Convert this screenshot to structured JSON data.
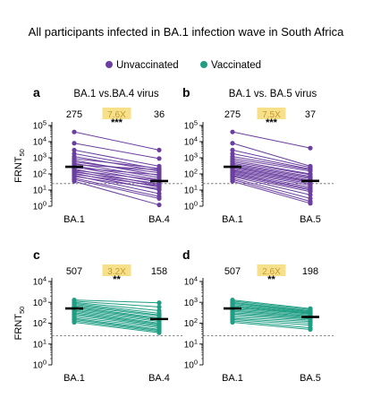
{
  "figure": {
    "title": "All participants  infected  in  BA.1 infection  wave  in  South Africa",
    "legend": [
      {
        "label": "Unvaccinated",
        "color": "#6b3fa0"
      },
      {
        "label": "Vaccinated",
        "color": "#1f9e84"
      }
    ],
    "highlight_color": "#f7e08a"
  },
  "chart_data": [
    {
      "type": "line",
      "panel": "a",
      "subtitle": "BA.1 vs.BA.4 virus",
      "group": "Unvaccinated",
      "color": "#6b3fa0",
      "ylabel": "FRNT",
      "ylabel_sub": "50",
      "scale": "log",
      "ylim": [
        1,
        100000
      ],
      "yticks": [
        1,
        10,
        100,
        1000,
        10000,
        100000
      ],
      "categories": [
        "BA.1",
        "BA.4"
      ],
      "gmt": [
        275,
        36
      ],
      "fold": "7.6X",
      "sig": "***",
      "cutoff": 25,
      "pairs": [
        [
          40000,
          3000
        ],
        [
          8000,
          900
        ],
        [
          3000,
          300
        ],
        [
          1800,
          200
        ],
        [
          1200,
          150
        ],
        [
          900,
          220
        ],
        [
          700,
          80
        ],
        [
          550,
          120
        ],
        [
          450,
          60
        ],
        [
          380,
          180
        ],
        [
          320,
          45
        ],
        [
          280,
          30
        ],
        [
          240,
          90
        ],
        [
          200,
          20
        ],
        [
          170,
          40
        ],
        [
          150,
          15
        ],
        [
          130,
          25
        ],
        [
          110,
          10
        ],
        [
          95,
          18
        ],
        [
          80,
          6
        ],
        [
          70,
          12
        ],
        [
          55,
          4
        ],
        [
          45,
          3
        ],
        [
          35,
          1.2
        ]
      ]
    },
    {
      "type": "line",
      "panel": "b",
      "subtitle": "BA.1 vs. BA.5 virus",
      "group": "Unvaccinated",
      "color": "#6b3fa0",
      "ylabel": "",
      "scale": "log",
      "ylim": [
        1,
        100000
      ],
      "yticks": [
        1,
        10,
        100,
        1000,
        10000,
        100000
      ],
      "categories": [
        "BA.1",
        "BA.5"
      ],
      "gmt": [
        275,
        37
      ],
      "fold": "7.5X",
      "sig": "***",
      "cutoff": 25,
      "pairs": [
        [
          40000,
          4000
        ],
        [
          8000,
          300
        ],
        [
          3000,
          250
        ],
        [
          1800,
          200
        ],
        [
          1200,
          180
        ],
        [
          900,
          150
        ],
        [
          700,
          100
        ],
        [
          550,
          90
        ],
        [
          450,
          70
        ],
        [
          380,
          60
        ],
        [
          320,
          50
        ],
        [
          280,
          40
        ],
        [
          240,
          35
        ],
        [
          200,
          30
        ],
        [
          170,
          25
        ],
        [
          150,
          20
        ],
        [
          130,
          15
        ],
        [
          110,
          12
        ],
        [
          95,
          10
        ],
        [
          80,
          8
        ],
        [
          70,
          5
        ],
        [
          55,
          3
        ],
        [
          45,
          2
        ],
        [
          35,
          1.5
        ]
      ]
    },
    {
      "type": "line",
      "panel": "c",
      "subtitle": "",
      "group": "Vaccinated",
      "color": "#1f9e84",
      "ylabel": "FRNT",
      "ylabel_sub": "50",
      "scale": "log",
      "ylim": [
        1,
        10000
      ],
      "yticks": [
        1,
        10,
        100,
        1000,
        10000
      ],
      "categories": [
        "BA.1",
        "BA.4"
      ],
      "gmt": [
        507,
        158
      ],
      "fold": "3.2X",
      "sig": "**",
      "cutoff": 25,
      "pairs": [
        [
          1300,
          950
        ],
        [
          1150,
          600
        ],
        [
          1000,
          400
        ],
        [
          900,
          300
        ],
        [
          800,
          250
        ],
        [
          700,
          220
        ],
        [
          620,
          180
        ],
        [
          550,
          160
        ],
        [
          480,
          140
        ],
        [
          420,
          120
        ],
        [
          370,
          100
        ],
        [
          320,
          90
        ],
        [
          280,
          80
        ],
        [
          240,
          70
        ],
        [
          200,
          60
        ],
        [
          170,
          50
        ],
        [
          150,
          45
        ],
        [
          130,
          40
        ],
        [
          110,
          35
        ]
      ]
    },
    {
      "type": "line",
      "panel": "d",
      "subtitle": "",
      "group": "Vaccinated",
      "color": "#1f9e84",
      "ylabel": "",
      "scale": "log",
      "ylim": [
        1,
        10000
      ],
      "yticks": [
        1,
        10,
        100,
        1000,
        10000
      ],
      "categories": [
        "BA.1",
        "BA.5"
      ],
      "gmt": [
        507,
        198
      ],
      "fold": "2.6X",
      "sig": "**",
      "cutoff": 25,
      "pairs": [
        [
          1300,
          500
        ],
        [
          1150,
          450
        ],
        [
          1000,
          400
        ],
        [
          900,
          380
        ],
        [
          800,
          350
        ],
        [
          700,
          320
        ],
        [
          620,
          300
        ],
        [
          550,
          280
        ],
        [
          480,
          250
        ],
        [
          420,
          220
        ],
        [
          370,
          200
        ],
        [
          320,
          180
        ],
        [
          280,
          160
        ],
        [
          240,
          140
        ],
        [
          200,
          120
        ],
        [
          170,
          100
        ],
        [
          150,
          80
        ],
        [
          130,
          60
        ],
        [
          110,
          50
        ]
      ]
    }
  ]
}
